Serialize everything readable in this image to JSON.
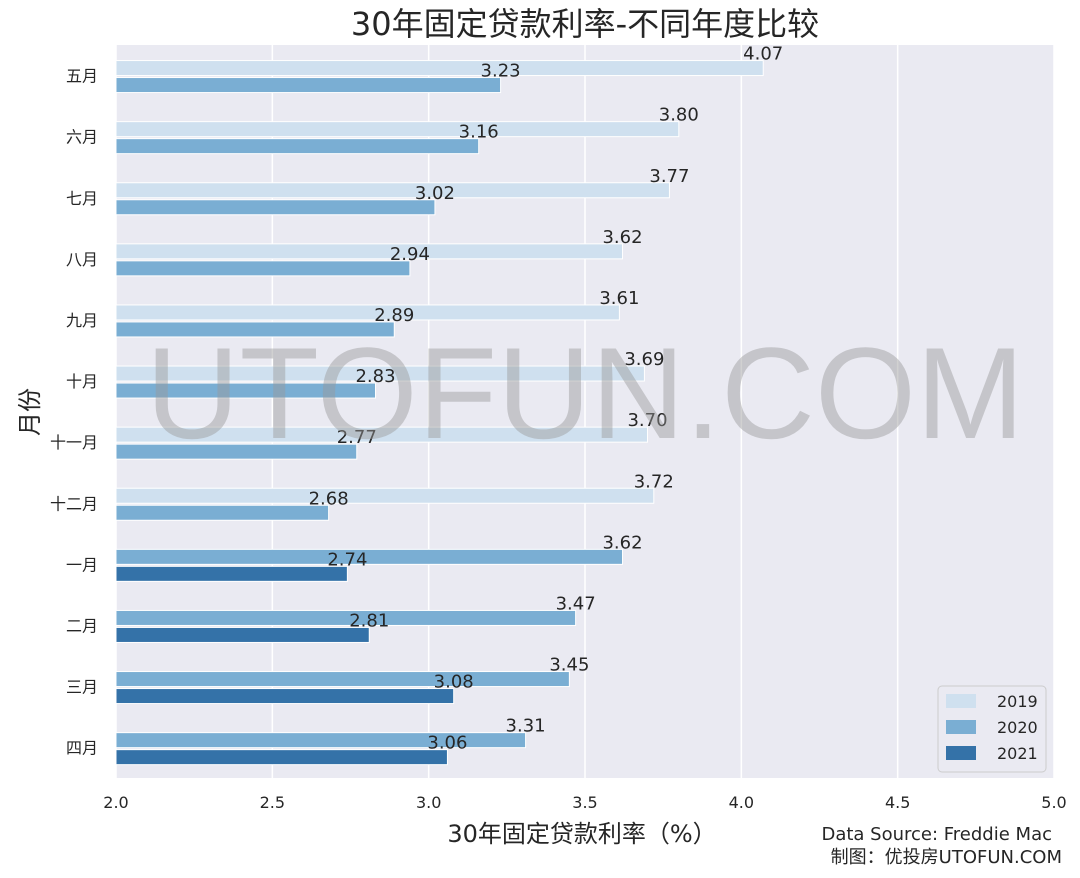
{
  "chart_data": {
    "type": "bar",
    "orientation": "horizontal",
    "title": "30年固定贷款利率-不同年度比较",
    "xlabel": "30年固定贷款利率（%）",
    "ylabel": "月份",
    "xlim": [
      2.0,
      5.0
    ],
    "xticks": [
      "2.0",
      "2.5",
      "3.0",
      "3.5",
      "4.0",
      "4.5",
      "5.0"
    ],
    "grid": true,
    "legend_position": "bottom-right",
    "categories": [
      "五月",
      "六月",
      "七月",
      "八月",
      "九月",
      "十月",
      "十一月",
      "十二月",
      "一月",
      "二月",
      "三月",
      "四月"
    ],
    "series": [
      {
        "name": "2019",
        "color": "#cfe0ef",
        "values": [
          4.07,
          3.8,
          3.77,
          3.62,
          3.61,
          3.69,
          3.7,
          3.72,
          null,
          null,
          null,
          null
        ]
      },
      {
        "name": "2020",
        "color": "#7aaed3",
        "values": [
          3.23,
          3.16,
          3.02,
          2.94,
          2.89,
          2.83,
          2.77,
          2.68,
          3.62,
          3.47,
          3.45,
          3.31
        ]
      },
      {
        "name": "2021",
        "color": "#3472a8",
        "values": [
          null,
          null,
          null,
          null,
          null,
          null,
          null,
          null,
          2.74,
          2.81,
          3.08,
          3.06
        ]
      }
    ]
  },
  "footer": {
    "source": "Data Source: Freddie Mac",
    "credit": "制图：优投房UTOFUN.COM"
  },
  "watermark": "UTOFUN.COM"
}
